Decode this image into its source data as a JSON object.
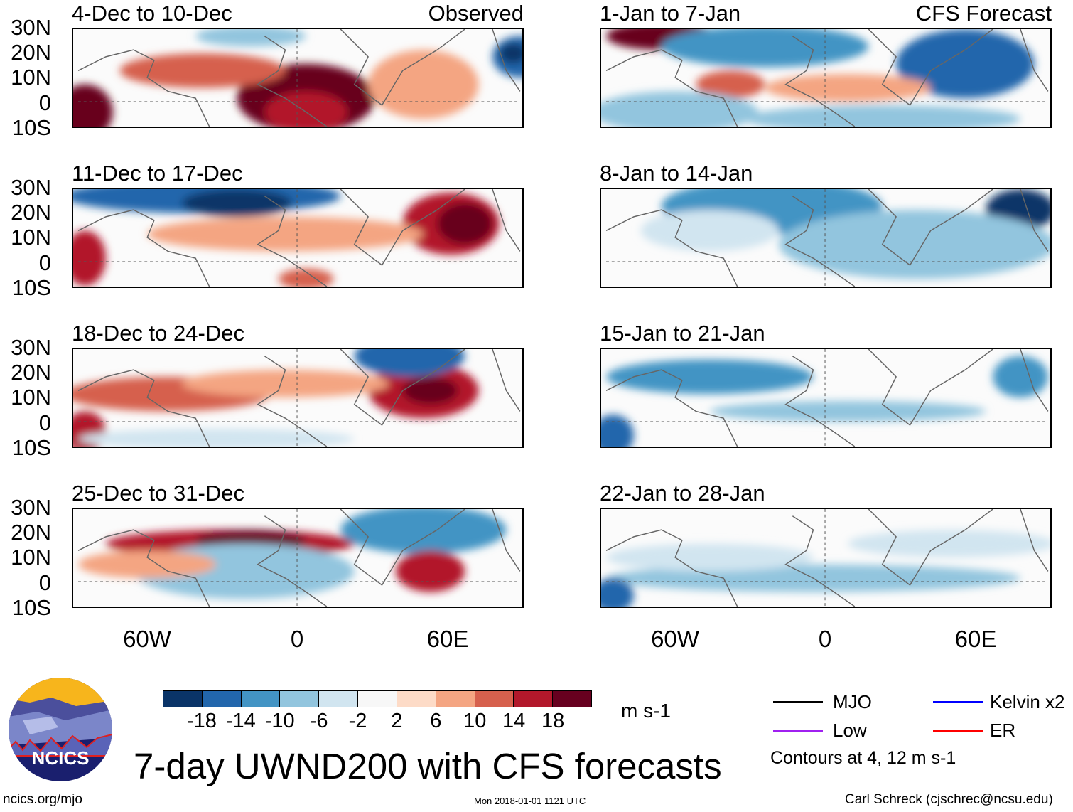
{
  "panels": [
    {
      "title": "4-Dec to 10-Dec",
      "label": "Observed"
    },
    {
      "title": "1-Jan to 7-Jan",
      "label": "CFS Forecast"
    },
    {
      "title": "11-Dec to 17-Dec"
    },
    {
      "title": "8-Jan to 14-Jan"
    },
    {
      "title": "18-Dec to 24-Dec"
    },
    {
      "title": "15-Jan to 21-Jan"
    },
    {
      "title": "25-Dec to 31-Dec"
    },
    {
      "title": "22-Jan to 28-Jan"
    }
  ],
  "lat_labels": [
    "30N",
    "20N",
    "10N",
    "0",
    "10S"
  ],
  "lon_labels": [
    "60W",
    "0",
    "60E"
  ],
  "colorbar": {
    "colors": [
      "#0a3468",
      "#2266ac",
      "#4394c4",
      "#92c5de",
      "#d1e5f0",
      "#f7f7f7",
      "#fddbc7",
      "#f4a582",
      "#d6604d",
      "#b2182b",
      "#67001f"
    ],
    "labels": [
      "-18",
      "-14",
      "-10",
      "-6",
      "-2",
      "2",
      "6",
      "10",
      "14",
      "18"
    ],
    "units": "m s-1"
  },
  "legend": {
    "items": [
      {
        "label": "MJO",
        "color": "#000000"
      },
      {
        "label": "Kelvin x2",
        "color": "#0000ff"
      },
      {
        "label": "Low",
        "color": "#a020f0"
      },
      {
        "label": "ER",
        "color": "#ff0000"
      }
    ],
    "note": "Contours at 4, 12 m s-1"
  },
  "title": "7-day UWND200 with CFS forecasts",
  "logo_text": "NCICS",
  "url": "ncics.org/mjo",
  "timestamp": "Mon 2018-01-01 1121 UTC",
  "credit": "Carl Schreck (cjschrec@ncsu.edu)"
}
